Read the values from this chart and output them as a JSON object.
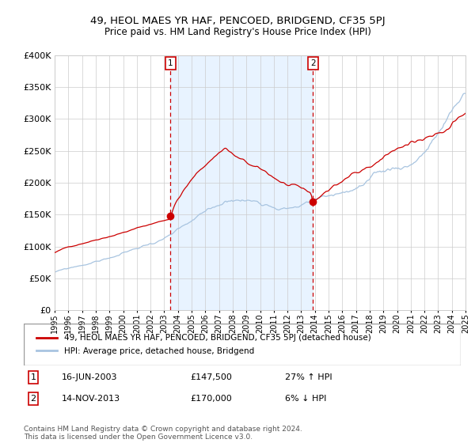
{
  "title": "49, HEOL MAES YR HAF, PENCOED, BRIDGEND, CF35 5PJ",
  "subtitle": "Price paid vs. HM Land Registry's House Price Index (HPI)",
  "legend_line1": "49, HEOL MAES YR HAF, PENCOED, BRIDGEND, CF35 5PJ (detached house)",
  "legend_line2": "HPI: Average price, detached house, Bridgend",
  "annotation1_label": "1",
  "annotation1_date": "16-JUN-2003",
  "annotation1_price": "£147,500",
  "annotation1_hpi": "27% ↑ HPI",
  "annotation2_label": "2",
  "annotation2_date": "14-NOV-2013",
  "annotation2_price": "£170,000",
  "annotation2_hpi": "6% ↓ HPI",
  "footer": "Contains HM Land Registry data © Crown copyright and database right 2024.\nThis data is licensed under the Open Government Licence v3.0.",
  "hpi_color": "#a8c4e0",
  "price_color": "#cc0000",
  "bg_shade_color": "#ddeeff",
  "vline_color": "#cc0000",
  "marker_color": "#cc0000",
  "box_color": "#cc0000",
  "ylim": [
    0,
    400000
  ],
  "yticks": [
    0,
    50000,
    100000,
    150000,
    200000,
    250000,
    300000,
    350000,
    400000
  ],
  "event1_x": 2003.46,
  "event1_y": 147500,
  "event2_x": 2013.87,
  "event2_y": 170000,
  "shade_x1": 2003.46,
  "shade_x2": 2013.87,
  "xlim_left": 1995,
  "xlim_right": 2025
}
